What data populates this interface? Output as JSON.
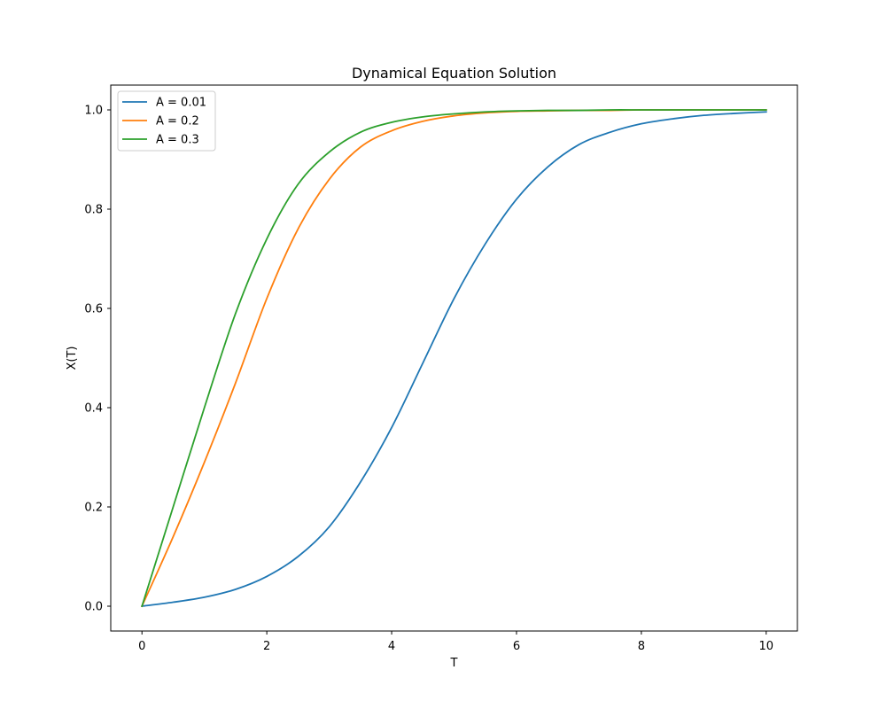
{
  "chart_data": {
    "type": "line",
    "title": "Dynamical Equation Solution",
    "xlabel": "T",
    "ylabel": "X(T)",
    "xlim": [
      -0.5,
      10.5
    ],
    "ylim": [
      -0.05,
      1.05
    ],
    "xticks": [
      0,
      2,
      4,
      6,
      8,
      10
    ],
    "xtick_labels": [
      "0",
      "2",
      "4",
      "6",
      "8",
      "10"
    ],
    "yticks": [
      0.0,
      0.2,
      0.4,
      0.6,
      0.8,
      1.0
    ],
    "ytick_labels": [
      "0.0",
      "0.2",
      "0.4",
      "0.6",
      "0.8",
      "1.0"
    ],
    "grid": false,
    "legend_position": "top-left",
    "x": [
      0,
      0.5,
      1,
      1.5,
      2,
      2.5,
      3,
      3.5,
      4,
      4.5,
      5,
      5.5,
      6,
      6.5,
      7,
      7.5,
      8,
      8.5,
      9,
      9.5,
      10
    ],
    "series": [
      {
        "name": "A = 0.01",
        "color": "#1f77b4",
        "values": [
          0.0,
          0.008,
          0.018,
          0.034,
          0.06,
          0.1,
          0.16,
          0.25,
          0.36,
          0.49,
          0.62,
          0.73,
          0.82,
          0.885,
          0.93,
          0.955,
          0.972,
          0.982,
          0.989,
          0.993,
          0.996
        ]
      },
      {
        "name": "A = 0.2",
        "color": "#ff7f0e",
        "values": [
          0.0,
          0.14,
          0.29,
          0.45,
          0.62,
          0.76,
          0.86,
          0.925,
          0.958,
          0.977,
          0.988,
          0.994,
          0.997,
          0.998,
          0.999,
          0.999,
          1.0,
          1.0,
          1.0,
          1.0,
          1.0
        ]
      },
      {
        "name": "A = 0.3",
        "color": "#2ca02c",
        "values": [
          0.0,
          0.2,
          0.4,
          0.59,
          0.74,
          0.85,
          0.915,
          0.955,
          0.975,
          0.986,
          0.992,
          0.996,
          0.998,
          0.999,
          0.999,
          1.0,
          1.0,
          1.0,
          1.0,
          1.0,
          1.0
        ]
      }
    ]
  }
}
